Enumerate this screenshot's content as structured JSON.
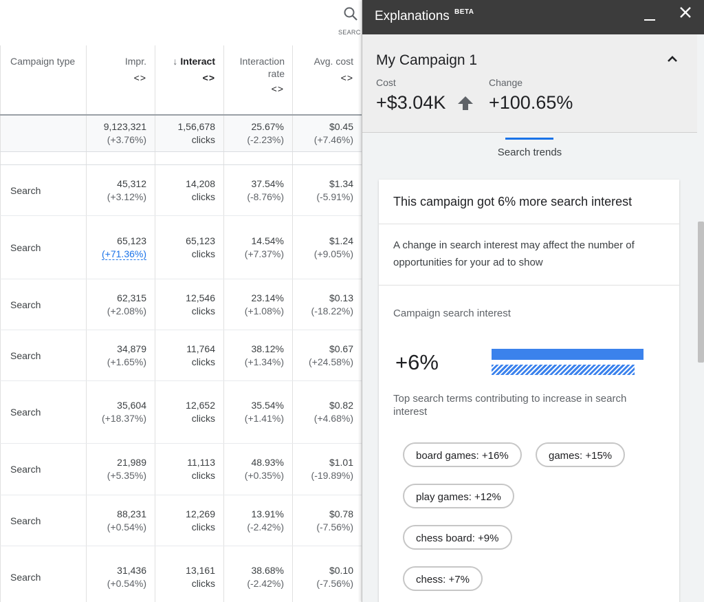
{
  "search": {
    "label": "SEARC"
  },
  "table": {
    "columns": [
      "Campaign type",
      "Impr.",
      "Interact",
      "Interaction rate",
      "Avg. cost"
    ],
    "sort_arrow": "↓",
    "column_arrows": "<>",
    "total": {
      "impr": "9,123,321",
      "impr_change": "(+3.76%)",
      "interactions": "1,56,678",
      "interactions_unit": "clicks",
      "rate": "25.67%",
      "rate_change": "(-2.23%)",
      "cost": "$0.45",
      "cost_change": "(+7.46%)"
    },
    "rows": [
      {
        "type": "Search",
        "impr": "45,312",
        "impr_change": "(+3.12%)",
        "interactions": "14,208",
        "interactions_unit": "clicks",
        "rate": "37.54%",
        "rate_change": "(-8.76%)",
        "cost": "$1.34",
        "cost_change": "(-5.91%)"
      },
      {
        "type": "Search",
        "impr": "65,123",
        "impr_change": "(+71.36%)",
        "interactions": "65,123",
        "interactions_unit": "clicks",
        "rate": "14.54%",
        "rate_change": "(+7.37%)",
        "cost": "$1.24",
        "cost_change": "(+9.05%)"
      },
      {
        "type": "Search",
        "impr": "62,315",
        "impr_change": "(+2.08%)",
        "interactions": "12,546",
        "interactions_unit": "clicks",
        "rate": "23.14%",
        "rate_change": "(+1.08%)",
        "cost": "$0.13",
        "cost_change": "(-18.22%)"
      },
      {
        "type": "Search",
        "impr": "34,879",
        "impr_change": "(+1.65%)",
        "interactions": "11,764",
        "interactions_unit": "clicks",
        "rate": "38.12%",
        "rate_change": "(+1.34%)",
        "cost": "$0.67",
        "cost_change": "(+24.58%)"
      },
      {
        "type": "Search",
        "impr": "35,604",
        "impr_change": "(+18.37%)",
        "interactions": "12,652",
        "interactions_unit": "clicks",
        "rate": "35.54%",
        "rate_change": "(+1.41%)",
        "cost": "$0.82",
        "cost_change": "(+4.68%)"
      },
      {
        "type": "Search",
        "impr": "21,989",
        "impr_change": "(+5.35%)",
        "interactions": "11,113",
        "interactions_unit": "clicks",
        "rate": "48.93%",
        "rate_change": "(+0.35%)",
        "cost": "$1.01",
        "cost_change": "(-19.89%)"
      },
      {
        "type": "Search",
        "impr": "88,231",
        "impr_change": "(+0.54%)",
        "interactions": "12,269",
        "interactions_unit": "clicks",
        "rate": "13.91%",
        "rate_change": "(-2.42%)",
        "cost": "$0.78",
        "cost_change": "(-7.56%)"
      },
      {
        "type": "Search",
        "impr": "31,436",
        "impr_change": "(+0.54%)",
        "interactions": "13,161",
        "interactions_unit": "clicks",
        "rate": "38.68%",
        "rate_change": "(-2.42%)",
        "cost": "$0.10",
        "cost_change": "(-7.56%)"
      }
    ]
  },
  "panel": {
    "title": "Explanations",
    "badge": "BETA",
    "campaign": "My Campaign 1",
    "cost_label": "Cost",
    "cost_value": "+$3.04K",
    "change_label": "Change",
    "change_value": "+100.65%",
    "tab": "Search trends",
    "card": {
      "headline": "This campaign got 6% more search interest",
      "description": "A change in search interest may affect the number of opportunities for your ad to show",
      "section_title": "Campaign search interest",
      "interest_value": "+6%",
      "top_terms_label": "Top search terms contributing to increase in search interest",
      "terms": [
        "board games: +16%",
        "games: +15%",
        "play games: +12%",
        "chess board: +9%",
        "chess: +7%"
      ]
    },
    "colors": {
      "accent": "#1a73e8",
      "bar": "#3b82ec",
      "topbar": "#3c3c3c"
    }
  }
}
